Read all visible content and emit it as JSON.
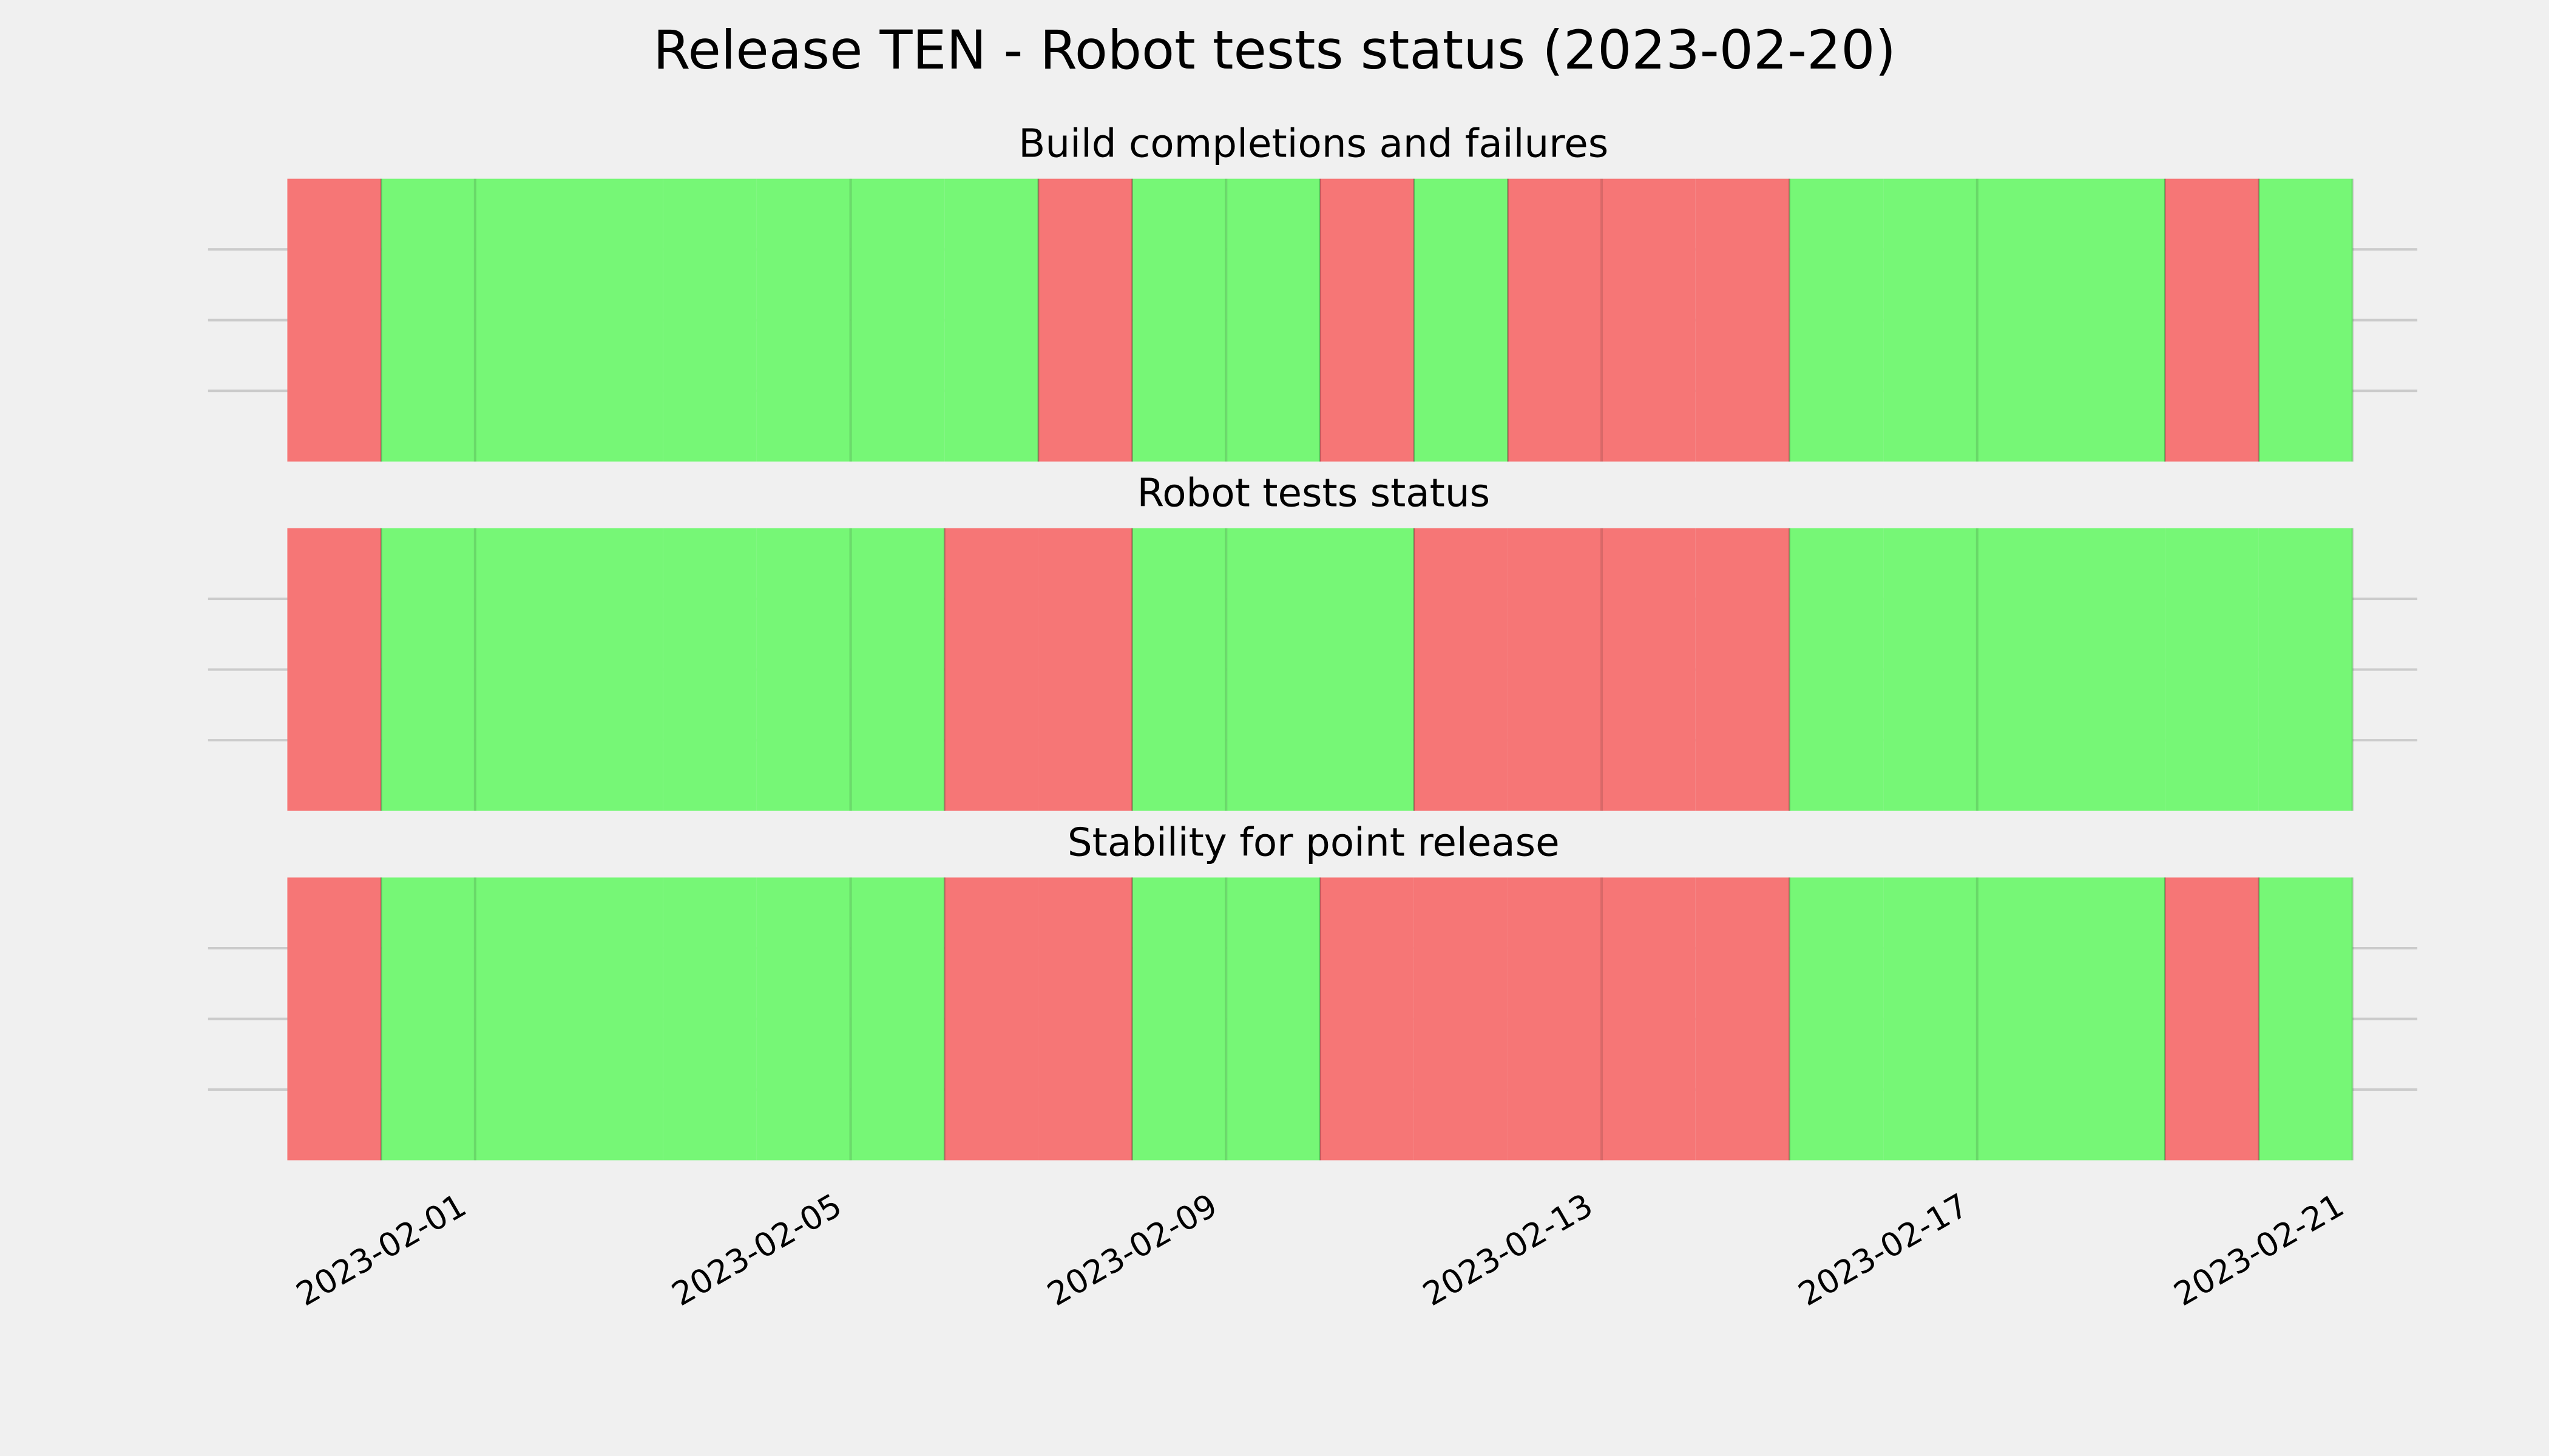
{
  "title": "Release TEN - Robot tests status (2023-02-20)",
  "chart_data": [
    {
      "type": "span",
      "title": "Build completions and failures",
      "x": [
        "2023-01-30",
        "2023-01-31",
        "2023-02-01",
        "2023-02-02",
        "2023-02-03",
        "2023-02-04",
        "2023-02-05",
        "2023-02-06",
        "2023-02-07",
        "2023-02-08",
        "2023-02-09",
        "2023-02-10",
        "2023-02-11",
        "2023-02-12",
        "2023-02-13",
        "2023-02-14",
        "2023-02-15",
        "2023-02-16",
        "2023-02-17",
        "2023-02-18",
        "2023-02-19",
        "2023-02-20"
      ],
      "values": [
        0,
        1,
        1,
        1,
        1,
        1,
        1,
        1,
        0,
        1,
        1,
        0,
        1,
        0,
        0,
        0,
        1,
        1,
        1,
        1,
        0,
        1
      ],
      "colors": [
        "#f67676",
        "#76f776"
      ],
      "xlim": [
        "2023-01-29",
        "2023-02-22"
      ],
      "xticks": [
        "2023-02-01",
        "2023-02-05",
        "2023-02-09",
        "2023-02-13",
        "2023-02-17",
        "2023-02-21"
      ],
      "ylim": [
        0,
        1
      ],
      "yticks": [
        0.25,
        0.5,
        0.75
      ],
      "grid": true
    },
    {
      "type": "span",
      "title": "Robot tests status",
      "x": [
        "2023-01-30",
        "2023-01-31",
        "2023-02-01",
        "2023-02-02",
        "2023-02-03",
        "2023-02-04",
        "2023-02-05",
        "2023-02-06",
        "2023-02-07",
        "2023-02-08",
        "2023-02-09",
        "2023-02-10",
        "2023-02-11",
        "2023-02-12",
        "2023-02-13",
        "2023-02-14",
        "2023-02-15",
        "2023-02-16",
        "2023-02-17",
        "2023-02-18",
        "2023-02-19",
        "2023-02-20"
      ],
      "values": [
        0,
        1,
        1,
        1,
        1,
        1,
        1,
        0,
        0,
        1,
        1,
        1,
        0,
        0,
        0,
        0,
        1,
        1,
        1,
        1,
        1,
        1
      ],
      "colors": [
        "#f67676",
        "#76f776"
      ],
      "xlim": [
        "2023-01-29",
        "2023-02-22"
      ],
      "xticks": [
        "2023-02-01",
        "2023-02-05",
        "2023-02-09",
        "2023-02-13",
        "2023-02-17",
        "2023-02-21"
      ],
      "ylim": [
        0,
        1
      ],
      "yticks": [
        0.25,
        0.5,
        0.75
      ],
      "grid": true
    },
    {
      "type": "span",
      "title": "Stability for point release",
      "x": [
        "2023-01-30",
        "2023-01-31",
        "2023-02-01",
        "2023-02-02",
        "2023-02-03",
        "2023-02-04",
        "2023-02-05",
        "2023-02-06",
        "2023-02-07",
        "2023-02-08",
        "2023-02-09",
        "2023-02-10",
        "2023-02-11",
        "2023-02-12",
        "2023-02-13",
        "2023-02-14",
        "2023-02-15",
        "2023-02-16",
        "2023-02-17",
        "2023-02-18",
        "2023-02-19",
        "2023-02-20"
      ],
      "values": [
        0,
        1,
        1,
        1,
        1,
        1,
        1,
        0,
        0,
        1,
        1,
        0,
        0,
        0,
        0,
        0,
        1,
        1,
        1,
        1,
        0,
        1
      ],
      "colors": [
        "#f67676",
        "#76f776"
      ],
      "xlim": [
        "2023-01-29",
        "2023-02-22"
      ],
      "xticks": [
        "2023-02-01",
        "2023-02-05",
        "2023-02-09",
        "2023-02-13",
        "2023-02-17",
        "2023-02-21"
      ],
      "ylim": [
        0,
        1
      ],
      "yticks": [
        0.25,
        0.5,
        0.75
      ],
      "grid": true
    }
  ]
}
